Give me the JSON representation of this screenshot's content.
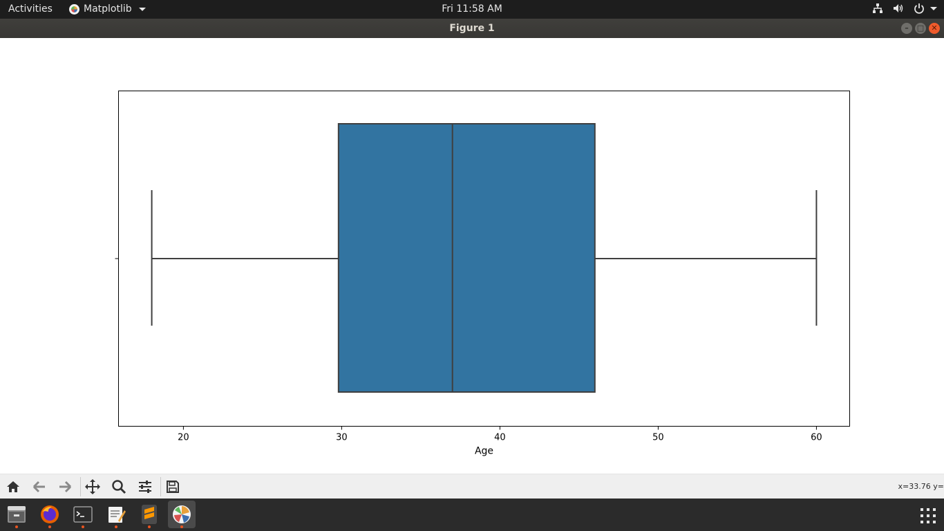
{
  "topbar": {
    "activities": "Activities",
    "app_name": "Matplotlib",
    "clock": "Fri 11:58 AM",
    "tray_icons": [
      "network-icon",
      "volume-icon",
      "power-icon"
    ]
  },
  "window": {
    "title": "Figure 1",
    "buttons": [
      "minimize",
      "maximize",
      "close"
    ]
  },
  "toolbar": {
    "buttons": [
      "home",
      "back",
      "forward",
      "pan",
      "zoom",
      "configure-subplots",
      "save"
    ],
    "coords": "x=33.76 y="
  },
  "dock": {
    "apps": [
      "files",
      "firefox",
      "terminal",
      "text-editor",
      "sublime-text",
      "matplotlib-figure"
    ],
    "active": "matplotlib-figure"
  },
  "colors": {
    "box_fill": "#3274a1",
    "line": "#3f3f3f",
    "topbar_bg": "#1d1d1d",
    "titlebar_bg": "#3c3b37",
    "dock_bg": "#2b2b2b",
    "accent": "#e95420"
  },
  "chart_data": {
    "type": "box",
    "orientation": "horizontal",
    "xlabel": "Age",
    "ylabel": "",
    "xlim": [
      15.9,
      62.1
    ],
    "xticks": [
      20,
      30,
      40,
      50,
      60
    ],
    "whisker_low": 18,
    "q1": 29.8,
    "median": 37,
    "q3": 46,
    "whisker_high": 60,
    "grid": false
  }
}
